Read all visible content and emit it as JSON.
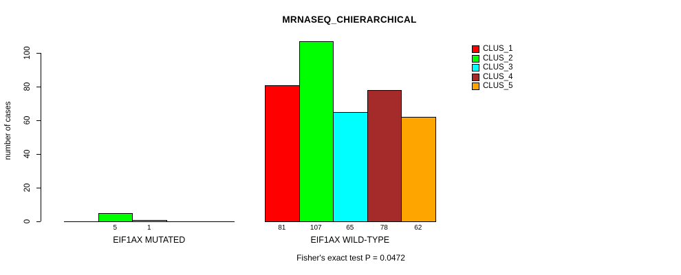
{
  "chart_data": {
    "type": "bar",
    "title": "MRNASEQ_CHIERARCHICAL",
    "ylabel": "number of cases",
    "xlabel": "",
    "yticks": [
      "0",
      "20",
      "40",
      "60",
      "80",
      "100"
    ],
    "ylim": [
      0,
      110
    ],
    "grid": false,
    "legend_position": "top-right",
    "legend": [
      {
        "label": "CLUS_1",
        "color": "#FF0000"
      },
      {
        "label": "CLUS_2",
        "color": "#00FF00"
      },
      {
        "label": "CLUS_3",
        "color": "#00FFFF"
      },
      {
        "label": "CLUS_4",
        "color": "#A52A2A"
      },
      {
        "label": "CLUS_5",
        "color": "#FFA500"
      }
    ],
    "categories": [
      "EIF1AX MUTATED",
      "EIF1AX WILD-TYPE"
    ],
    "groups": [
      {
        "label": "EIF1AX MUTATED",
        "values": [
          0,
          5,
          1,
          0,
          0
        ]
      },
      {
        "label": "EIF1AX WILD-TYPE",
        "values": [
          81,
          107,
          65,
          78,
          62
        ]
      }
    ],
    "footnote": "Fisher's exact test P = 0.0472"
  }
}
